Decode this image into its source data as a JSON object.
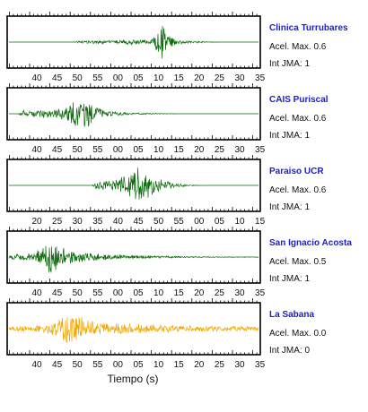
{
  "colors": {
    "trace": "#0b6b0b",
    "trace_last": "#f5a800",
    "station_name": "#1c1cd6",
    "frame": "#000000"
  },
  "chart_data": {
    "type": "line",
    "xlabel": "Tiempo (s)",
    "panels": [
      {
        "station": "Clinica Turrubares",
        "accel": "Acel. Max. 0.6",
        "int": "Int JMA: 1",
        "color": "#0b6b0b",
        "tick_labels": [
          "40",
          "45",
          "50",
          "55",
          "00",
          "05",
          "10",
          "15",
          "20",
          "25",
          "30",
          "35"
        ],
        "ticks_visible": "bottom",
        "signal": [
          {
            "t": 0.0,
            "a": 0.0
          },
          {
            "t": 0.26,
            "a": 0.0
          },
          {
            "t": 0.28,
            "a": 0.06
          },
          {
            "t": 0.45,
            "a": 0.08
          },
          {
            "t": 0.47,
            "a": 0.12
          },
          {
            "t": 0.56,
            "a": 0.1
          },
          {
            "t": 0.585,
            "a": 0.3
          },
          {
            "t": 0.6,
            "a": 0.55
          },
          {
            "t": 0.615,
            "a": 0.8
          },
          {
            "t": 0.635,
            "a": 0.4
          },
          {
            "t": 0.66,
            "a": 0.15
          },
          {
            "t": 0.72,
            "a": 0.06
          },
          {
            "t": 0.8,
            "a": 0.02
          },
          {
            "t": 0.85,
            "a": 0.0
          },
          {
            "t": 1.0,
            "a": 0.0
          }
        ]
      },
      {
        "station": "CAIS Puriscal",
        "accel": "Acel. Max. 0.6",
        "int": "Int JMA: 1",
        "color": "#0b6b0b",
        "tick_labels": [
          "40",
          "45",
          "50",
          "55",
          "00",
          "05",
          "10",
          "15",
          "20",
          "25",
          "30",
          "35"
        ],
        "ticks_visible": "both",
        "signal": [
          {
            "t": 0.0,
            "a": 0.0
          },
          {
            "t": 0.035,
            "a": 0.0
          },
          {
            "t": 0.05,
            "a": 0.15
          },
          {
            "t": 0.12,
            "a": 0.15
          },
          {
            "t": 0.18,
            "a": 0.2
          },
          {
            "t": 0.22,
            "a": 0.3
          },
          {
            "t": 0.25,
            "a": 0.5
          },
          {
            "t": 0.28,
            "a": 0.9
          },
          {
            "t": 0.31,
            "a": 0.7
          },
          {
            "t": 0.34,
            "a": 0.3
          },
          {
            "t": 0.4,
            "a": 0.12
          },
          {
            "t": 0.5,
            "a": 0.05
          },
          {
            "t": 0.6,
            "a": 0.02
          },
          {
            "t": 0.7,
            "a": 0.0
          },
          {
            "t": 1.0,
            "a": 0.0
          }
        ]
      },
      {
        "station": "Paraiso UCR",
        "accel": "Acel. Max. 0.6",
        "int": "Int JMA: 1",
        "color": "#0b6b0b",
        "tick_labels": [
          "20",
          "25",
          "30",
          "35",
          "40",
          "45",
          "50",
          "55",
          "00",
          "05",
          "10",
          "15"
        ],
        "ticks_visible": "both",
        "signal": [
          {
            "t": 0.0,
            "a": 0.0
          },
          {
            "t": 0.33,
            "a": 0.0
          },
          {
            "t": 0.35,
            "a": 0.18
          },
          {
            "t": 0.4,
            "a": 0.22
          },
          {
            "t": 0.44,
            "a": 0.3
          },
          {
            "t": 0.48,
            "a": 0.55
          },
          {
            "t": 0.51,
            "a": 0.9
          },
          {
            "t": 0.54,
            "a": 0.6
          },
          {
            "t": 0.58,
            "a": 0.45
          },
          {
            "t": 0.62,
            "a": 0.25
          },
          {
            "t": 0.66,
            "a": 0.1
          },
          {
            "t": 0.72,
            "a": 0.03
          },
          {
            "t": 0.8,
            "a": 0.0
          },
          {
            "t": 1.0,
            "a": 0.0
          }
        ]
      },
      {
        "station": "San Ignacio Acosta",
        "accel": "Acel. Max. 0.5",
        "int": "Int JMA: 1",
        "color": "#0b6b0b",
        "tick_labels": [
          "40",
          "45",
          "50",
          "55",
          "00",
          "05",
          "10",
          "15",
          "20",
          "25",
          "30",
          "35"
        ],
        "ticks_visible": "both",
        "signal": [
          {
            "t": 0.0,
            "a": 0.1
          },
          {
            "t": 0.08,
            "a": 0.15
          },
          {
            "t": 0.14,
            "a": 0.4
          },
          {
            "t": 0.17,
            "a": 0.95
          },
          {
            "t": 0.2,
            "a": 0.5
          },
          {
            "t": 0.25,
            "a": 0.3
          },
          {
            "t": 0.32,
            "a": 0.2
          },
          {
            "t": 0.4,
            "a": 0.12
          },
          {
            "t": 0.5,
            "a": 0.08
          },
          {
            "t": 0.6,
            "a": 0.05
          },
          {
            "t": 0.7,
            "a": 0.03
          },
          {
            "t": 0.85,
            "a": 0.02
          },
          {
            "t": 1.0,
            "a": 0.01
          }
        ]
      },
      {
        "station": "La Sabana",
        "accel": "Acel. Max. 0.0",
        "int": "Int JMA: 0",
        "color": "#f5a800",
        "tick_labels": [
          "40",
          "45",
          "50",
          "55",
          "00",
          "05",
          "10",
          "15",
          "20",
          "25",
          "30",
          "35"
        ],
        "ticks_visible": "both",
        "signal": [
          {
            "t": 0.0,
            "a": 0.12
          },
          {
            "t": 0.1,
            "a": 0.12
          },
          {
            "t": 0.16,
            "a": 0.25
          },
          {
            "t": 0.2,
            "a": 0.45
          },
          {
            "t": 0.23,
            "a": 0.85
          },
          {
            "t": 0.26,
            "a": 0.7
          },
          {
            "t": 0.3,
            "a": 0.45
          },
          {
            "t": 0.36,
            "a": 0.3
          },
          {
            "t": 0.45,
            "a": 0.25
          },
          {
            "t": 0.55,
            "a": 0.2
          },
          {
            "t": 0.7,
            "a": 0.15
          },
          {
            "t": 0.85,
            "a": 0.12
          },
          {
            "t": 1.0,
            "a": 0.1
          }
        ]
      }
    ]
  }
}
